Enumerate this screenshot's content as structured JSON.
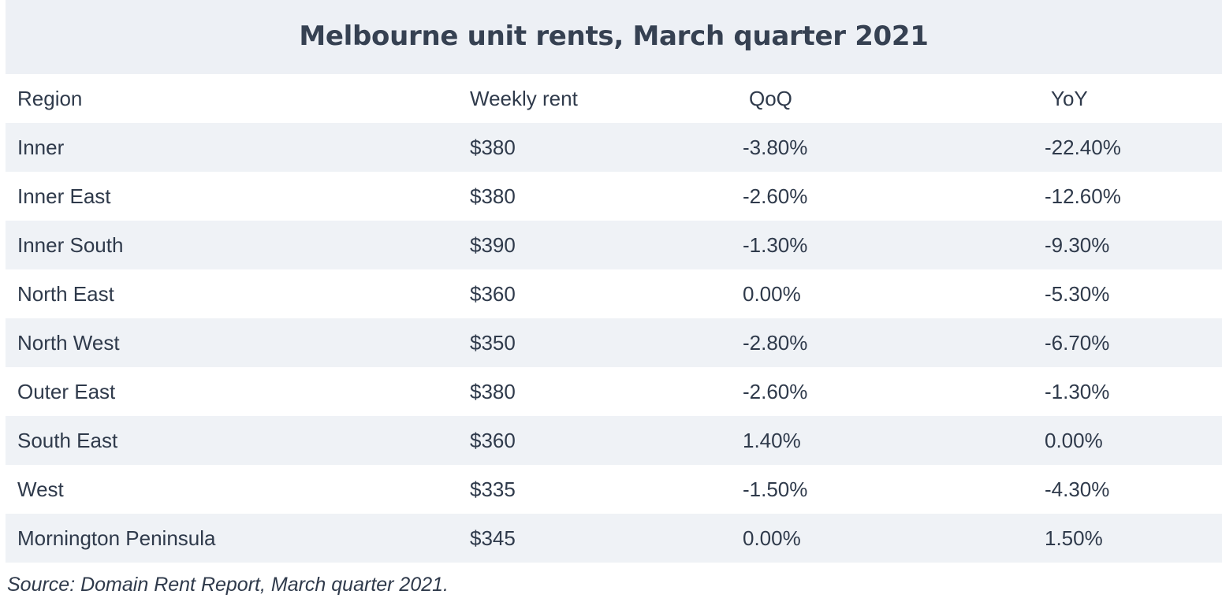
{
  "chart_data": {
    "type": "table",
    "title": "Melbourne unit rents, March quarter 2021",
    "columns": [
      "Region",
      "Weekly rent",
      "QoQ",
      "YoY"
    ],
    "rows": [
      {
        "region": "Inner",
        "rent": "$380",
        "qoq": "-3.80%",
        "yoy": "-22.40%"
      },
      {
        "region": "Inner East",
        "rent": "$380",
        "qoq": "-2.60%",
        "yoy": "-12.60%"
      },
      {
        "region": "Inner South",
        "rent": "$390",
        "qoq": "-1.30%",
        "yoy": "-9.30%"
      },
      {
        "region": "North East",
        "rent": "$360",
        "qoq": "0.00%",
        "yoy": "-5.30%"
      },
      {
        "region": "North West",
        "rent": "$350",
        "qoq": "-2.80%",
        "yoy": "-6.70%"
      },
      {
        "region": "Outer East",
        "rent": "$380",
        "qoq": "-2.60%",
        "yoy": "-1.30%"
      },
      {
        "region": "South East",
        "rent": "$360",
        "qoq": "1.40%",
        "yoy": "0.00%"
      },
      {
        "region": "West",
        "rent": "$335",
        "qoq": "-1.50%",
        "yoy": "-4.30%"
      },
      {
        "region": "Mornington Peninsula",
        "rent": "$345",
        "qoq": "0.00%",
        "yoy": "1.50%"
      }
    ],
    "source": "Source: Domain Rent Report, March quarter 2021."
  },
  "colors": {
    "title_band": "#edf0f5",
    "shaded_row": "#eff2f6",
    "text": "#2f3a4b"
  }
}
